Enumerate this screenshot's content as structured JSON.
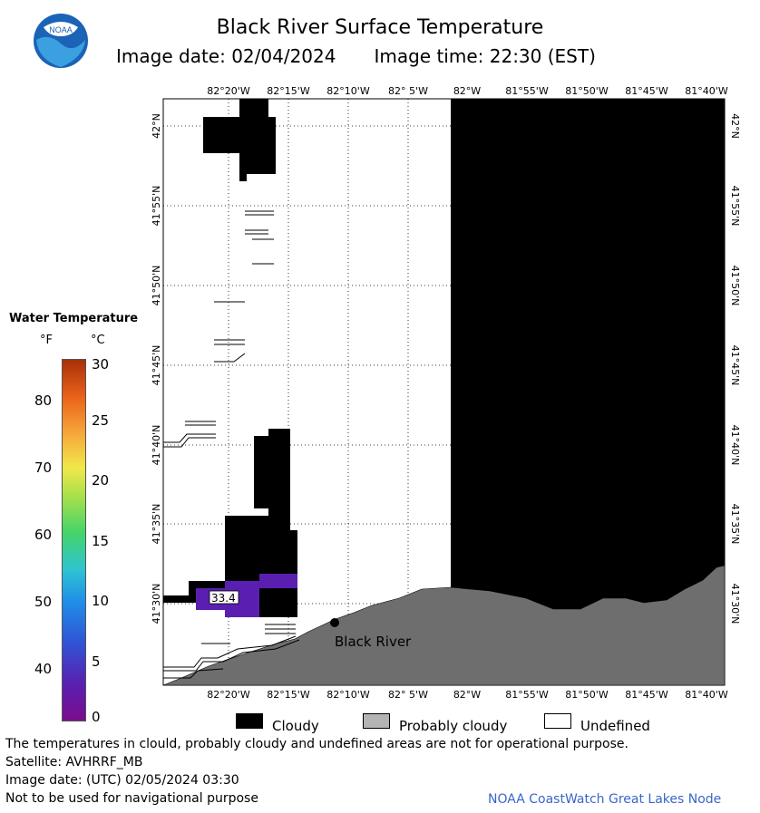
{
  "header": {
    "title": "Black River Surface Temperature",
    "image_date_label": "Image date: 02/04/2024",
    "image_time_label": "Image time: 22:30 (EST)"
  },
  "logo": {
    "text": "NOAA"
  },
  "map": {
    "top_lon_labels": [
      "82°20'W",
      "82°15'W",
      "82°10'W",
      "82° 5'W",
      "82°W",
      "81°55'W",
      "81°50'W",
      "81°45'W",
      "81°40'W"
    ],
    "bottom_lon_labels": [
      "82°20'W",
      "82°15'W",
      "82°10'W",
      "82° 5'W",
      "82°W",
      "81°55'W",
      "81°50'W",
      "81°45'W",
      "81°40'W"
    ],
    "left_lat_labels": [
      "42°N",
      "41°55'N",
      "41°50'N",
      "41°45'N",
      "41°40'N",
      "41°35'N",
      "41°30'N"
    ],
    "right_lat_labels": [
      "42°N",
      "41°55'N",
      "41°50'N",
      "41°45'N",
      "41°40'N",
      "41°35'N",
      "41°30'N"
    ],
    "temperature_reading": "33.4",
    "place_label": "Black River"
  },
  "legend": {
    "title": "Water Temperature",
    "unit_f": "°F",
    "unit_c": "°C",
    "f_ticks": [
      "80",
      "70",
      "60",
      "50",
      "40"
    ],
    "c_ticks": [
      "30",
      "25",
      "20",
      "15",
      "10",
      "5",
      "0"
    ]
  },
  "key": {
    "cloudy": "Cloudy",
    "probably_cloudy": "Probably cloudy",
    "undefined": "Undefined",
    "cloudy_color": "#000000",
    "probably_cloudy_color": "#b4b4b4",
    "undefined_color": "#ffffff"
  },
  "footer": {
    "line1": "The temperatures in clould, probably cloudy and undefined areas are not for operational purpose.",
    "line2": "Satellite: AVHRRF_MB",
    "line3": "Image date: (UTC) 02/05/2024  03:30",
    "line4": "Not to be used for navigational purpose",
    "credit": "NOAA CoastWatch Great Lakes Node"
  },
  "colors": {
    "land": "#6e6e6e",
    "cloud": "#000000",
    "water_reading": "#5a1fb0"
  }
}
